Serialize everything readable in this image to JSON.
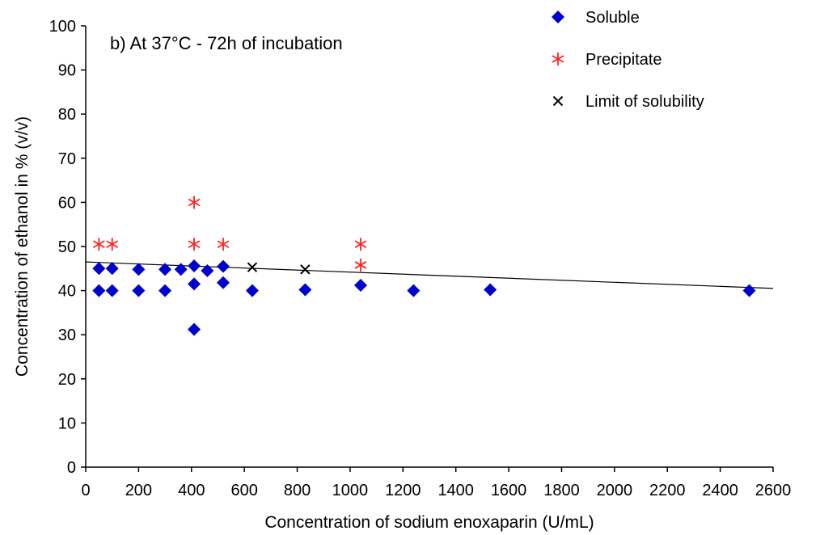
{
  "chart_data": {
    "type": "scatter",
    "title": "b) At 37°C -  72h of incubation",
    "xlabel": "Concentration of sodium enoxaparin (U/mL)",
    "ylabel": "Concentration  of ethanol  in % (v/v)",
    "xlim": [
      0,
      2600
    ],
    "ylim": [
      0,
      100
    ],
    "xticks": [
      0,
      200,
      400,
      600,
      800,
      1000,
      1200,
      1400,
      1600,
      1800,
      2000,
      2200,
      2400,
      2600
    ],
    "yticks": [
      0,
      10,
      20,
      30,
      40,
      50,
      60,
      70,
      80,
      90,
      100
    ],
    "grid": false,
    "legend_position": "top-right",
    "series": [
      {
        "name": "Soluble",
        "marker": "diamond",
        "color": "#0000cc",
        "points": [
          {
            "x": 50,
            "y": 45
          },
          {
            "x": 50,
            "y": 40
          },
          {
            "x": 100,
            "y": 45
          },
          {
            "x": 100,
            "y": 40
          },
          {
            "x": 200,
            "y": 44.8
          },
          {
            "x": 200,
            "y": 40
          },
          {
            "x": 300,
            "y": 44.8
          },
          {
            "x": 300,
            "y": 40
          },
          {
            "x": 360,
            "y": 44.8
          },
          {
            "x": 410,
            "y": 45.6
          },
          {
            "x": 410,
            "y": 41.5
          },
          {
            "x": 410,
            "y": 31.2
          },
          {
            "x": 460,
            "y": 44.5
          },
          {
            "x": 520,
            "y": 45.5
          },
          {
            "x": 520,
            "y": 41.8
          },
          {
            "x": 630,
            "y": 40
          },
          {
            "x": 830,
            "y": 40.2
          },
          {
            "x": 1040,
            "y": 41.2
          },
          {
            "x": 1240,
            "y": 40
          },
          {
            "x": 1530,
            "y": 40.2
          },
          {
            "x": 2510,
            "y": 40
          }
        ]
      },
      {
        "name": "Precipitate",
        "marker": "asterisk",
        "color": "#ff2020",
        "points": [
          {
            "x": 50,
            "y": 50.5
          },
          {
            "x": 100,
            "y": 50.5
          },
          {
            "x": 410,
            "y": 60
          },
          {
            "x": 410,
            "y": 50.5
          },
          {
            "x": 520,
            "y": 50.5
          },
          {
            "x": 1040,
            "y": 50.5
          },
          {
            "x": 1040,
            "y": 45.8
          }
        ]
      },
      {
        "name": "Limit of solubility",
        "marker": "x",
        "color": "#000000",
        "points": [
          {
            "x": 630,
            "y": 45.3
          },
          {
            "x": 830,
            "y": 44.8
          }
        ]
      }
    ],
    "trendline": {
      "x": [
        0,
        2600
      ],
      "y": [
        46.5,
        40.5
      ],
      "color": "#000000"
    }
  }
}
